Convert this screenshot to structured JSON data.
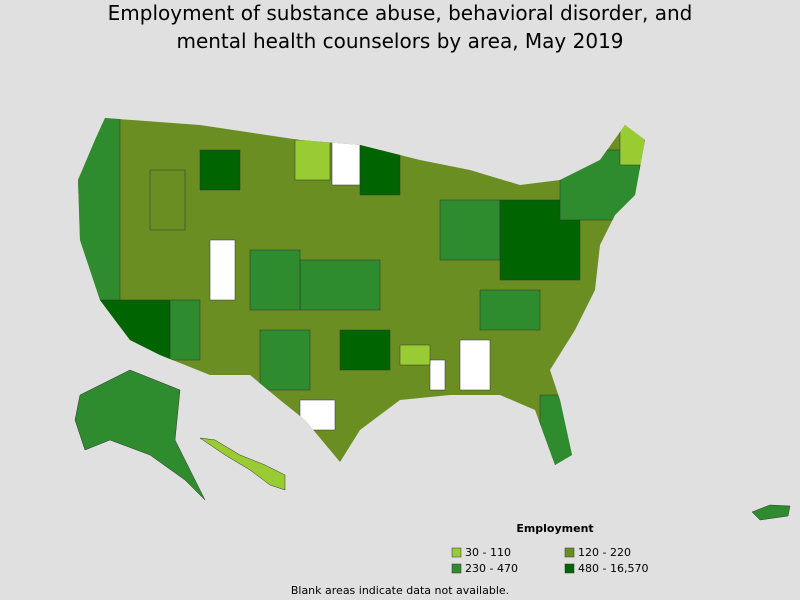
{
  "title": [
    "Employment of substance abuse, behavioral disorder, and",
    "mental health counselors by area, May 2019"
  ],
  "legend": {
    "title": "Employment",
    "items": [
      {
        "label": "30 - 110",
        "color": "#99cc33"
      },
      {
        "label": "120 - 220",
        "color": "#6b8e23"
      },
      {
        "label": "230 - 470",
        "color": "#2e8b2e"
      },
      {
        "label": "480 - 16,570",
        "color": "#006400"
      }
    ]
  },
  "note": "Blank areas indicate data not available."
}
